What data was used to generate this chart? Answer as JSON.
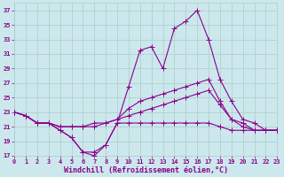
{
  "x": [
    0,
    1,
    2,
    3,
    4,
    5,
    6,
    7,
    8,
    9,
    10,
    11,
    12,
    13,
    14,
    15,
    16,
    17,
    18,
    19,
    20,
    21,
    22,
    23
  ],
  "line1": [
    23,
    22.5,
    21.5,
    21.5,
    20.5,
    19.5,
    17.5,
    17,
    18.5,
    21.5,
    26.5,
    31.5,
    32,
    29,
    34.5,
    35.5,
    37,
    33,
    27.5,
    24.5,
    22,
    21.5,
    20.5,
    20.5
  ],
  "line2": [
    23,
    22.5,
    21.5,
    21.5,
    21.0,
    21.0,
    21.0,
    21.5,
    21.5,
    22.0,
    23.5,
    24.5,
    25.0,
    25.5,
    26.0,
    26.5,
    27.0,
    27.5,
    24.5,
    22.0,
    21.5,
    20.5,
    20.5,
    20.5
  ],
  "line3": [
    23,
    22.5,
    21.5,
    21.5,
    21.0,
    21.0,
    21.0,
    21.0,
    21.5,
    22.0,
    22.5,
    23.0,
    23.5,
    24.0,
    24.5,
    25.0,
    25.5,
    26.0,
    24.0,
    22.0,
    21.0,
    20.5,
    20.5,
    20.5
  ],
  "line4": [
    23,
    22.5,
    21.5,
    21.5,
    20.5,
    19.5,
    17.5,
    17.5,
    18.5,
    21.5,
    21.5,
    21.5,
    21.5,
    21.5,
    21.5,
    21.5,
    21.5,
    21.5,
    21.0,
    20.5,
    20.5,
    20.5,
    20.5,
    20.5
  ],
  "background_color": "#cce8ec",
  "grid_color": "#aacccc",
  "line_color": "#8b008b",
  "xlim": [
    0,
    23
  ],
  "ylim": [
    17,
    38
  ],
  "yticks": [
    17,
    19,
    21,
    23,
    25,
    27,
    29,
    31,
    33,
    35,
    37
  ],
  "xticks": [
    0,
    1,
    2,
    3,
    4,
    5,
    6,
    7,
    8,
    9,
    10,
    11,
    12,
    13,
    14,
    15,
    16,
    17,
    18,
    19,
    20,
    21,
    22,
    23
  ],
  "xlabel": "Windchill (Refroidissement éolien,°C)",
  "tick_fontsize": 5.0,
  "xlabel_fontsize": 6.0,
  "marker_size": 2.0,
  "lw": 0.8
}
